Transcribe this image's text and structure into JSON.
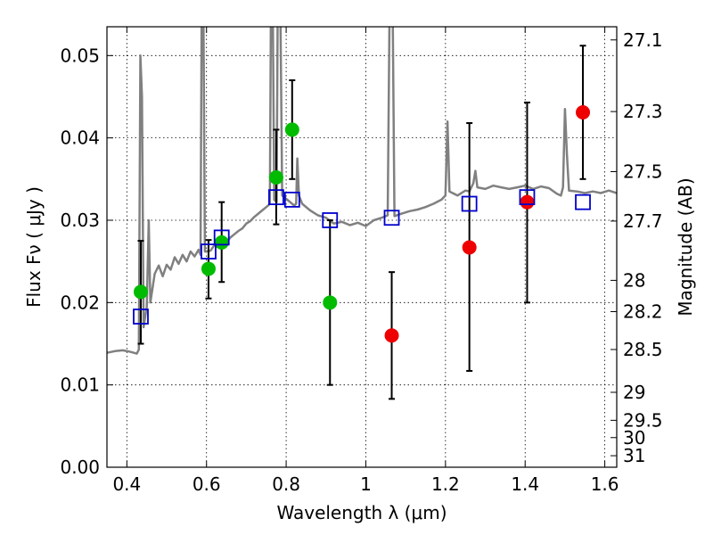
{
  "chart_data": {
    "type": "scatter",
    "xlabel": "Wavelength  λ (μm)",
    "ylabel": "Flux  Fν  ( μJy )",
    "y2label": "Magnitude (AB)",
    "xlim": [
      0.35,
      1.63
    ],
    "ylim": [
      0.0,
      0.0535
    ],
    "xticks": [
      "0.4",
      "0.6",
      "0.8",
      "1",
      "1.2",
      "1.4",
      "1.6"
    ],
    "xtick_values": [
      0.4,
      0.6,
      0.8,
      1.0,
      1.2,
      1.4,
      1.6
    ],
    "yticks": [
      "0.00",
      "0.01",
      "0.02",
      "0.03",
      "0.04",
      "0.05"
    ],
    "ytick_values": [
      0.0,
      0.01,
      0.02,
      0.03,
      0.04,
      0.05
    ],
    "y2ticks": [
      {
        "label": "27.1",
        "flux": 0.0519
      },
      {
        "label": "27.3",
        "flux": 0.0432
      },
      {
        "label": "27.5",
        "flux": 0.0359
      },
      {
        "label": "27.7",
        "flux": 0.0299
      },
      {
        "label": "28",
        "flux": 0.0227
      },
      {
        "label": "28.2",
        "flux": 0.0189
      },
      {
        "label": "28.5",
        "flux": 0.0143
      },
      {
        "label": "29",
        "flux": 0.0091
      },
      {
        "label": "29.5",
        "flux": 0.0057
      },
      {
        "label": "30",
        "flux": 0.0036
      },
      {
        "label": "31",
        "flux": 0.0014
      }
    ],
    "grid": true,
    "colors": {
      "spectrum": "#808080",
      "green_points": "#00bb00",
      "red_points": "#ee0000",
      "model_squares": "#0000cc",
      "errorbar": "#000000"
    },
    "spectrum": [
      [
        0.35,
        0.0139
      ],
      [
        0.37,
        0.0141
      ],
      [
        0.39,
        0.0142
      ],
      [
        0.41,
        0.014
      ],
      [
        0.425,
        0.0138
      ],
      [
        0.43,
        0.0143
      ],
      [
        0.434,
        0.05
      ],
      [
        0.438,
        0.045
      ],
      [
        0.442,
        0.017
      ],
      [
        0.45,
        0.0195
      ],
      [
        0.455,
        0.03
      ],
      [
        0.459,
        0.02
      ],
      [
        0.47,
        0.0235
      ],
      [
        0.48,
        0.0245
      ],
      [
        0.49,
        0.0232
      ],
      [
        0.5,
        0.0246
      ],
      [
        0.51,
        0.024
      ],
      [
        0.52,
        0.0255
      ],
      [
        0.53,
        0.0247
      ],
      [
        0.54,
        0.0258
      ],
      [
        0.55,
        0.025
      ],
      [
        0.56,
        0.0262
      ],
      [
        0.57,
        0.0256
      ],
      [
        0.58,
        0.0264
      ],
      [
        0.585,
        0.0258
      ],
      [
        0.588,
        0.058
      ],
      [
        0.592,
        0.058
      ],
      [
        0.596,
        0.0262
      ],
      [
        0.61,
        0.0263
      ],
      [
        0.62,
        0.027
      ],
      [
        0.63,
        0.0268
      ],
      [
        0.64,
        0.0274
      ],
      [
        0.65,
        0.0273
      ],
      [
        0.66,
        0.0279
      ],
      [
        0.67,
        0.0283
      ],
      [
        0.68,
        0.0287
      ],
      [
        0.69,
        0.029
      ],
      [
        0.7,
        0.0296
      ],
      [
        0.71,
        0.0299
      ],
      [
        0.72,
        0.0304
      ],
      [
        0.73,
        0.0308
      ],
      [
        0.74,
        0.0312
      ],
      [
        0.75,
        0.0316
      ],
      [
        0.755,
        0.0318
      ],
      [
        0.759,
        0.032
      ],
      [
        0.762,
        0.058
      ],
      [
        0.766,
        0.058
      ],
      [
        0.77,
        0.0325
      ],
      [
        0.776,
        0.0322
      ],
      [
        0.779,
        0.058
      ],
      [
        0.785,
        0.058
      ],
      [
        0.79,
        0.033
      ],
      [
        0.8,
        0.0326
      ],
      [
        0.81,
        0.0322
      ],
      [
        0.82,
        0.0318
      ],
      [
        0.825,
        0.032
      ],
      [
        0.828,
        0.0375
      ],
      [
        0.832,
        0.033
      ],
      [
        0.84,
        0.032
      ],
      [
        0.86,
        0.0312
      ],
      [
        0.88,
        0.0306
      ],
      [
        0.9,
        0.0303
      ],
      [
        0.92,
        0.0296
      ],
      [
        0.94,
        0.0298
      ],
      [
        0.96,
        0.0294
      ],
      [
        0.98,
        0.0297
      ],
      [
        1.0,
        0.0293
      ],
      [
        1.02,
        0.03
      ],
      [
        1.04,
        0.0303
      ],
      [
        1.055,
        0.0306
      ],
      [
        1.06,
        0.058
      ],
      [
        1.067,
        0.058
      ],
      [
        1.072,
        0.0305
      ],
      [
        1.09,
        0.0308
      ],
      [
        1.11,
        0.0311
      ],
      [
        1.13,
        0.0313
      ],
      [
        1.15,
        0.0316
      ],
      [
        1.17,
        0.032
      ],
      [
        1.19,
        0.0325
      ],
      [
        1.2,
        0.033
      ],
      [
        1.205,
        0.042
      ],
      [
        1.21,
        0.0335
      ],
      [
        1.23,
        0.033
      ],
      [
        1.25,
        0.0336
      ],
      [
        1.26,
        0.0335
      ],
      [
        1.27,
        0.0345
      ],
      [
        1.275,
        0.036
      ],
      [
        1.28,
        0.034
      ],
      [
        1.3,
        0.0338
      ],
      [
        1.32,
        0.0342
      ],
      [
        1.34,
        0.034
      ],
      [
        1.36,
        0.0338
      ],
      [
        1.38,
        0.034
      ],
      [
        1.4,
        0.0342
      ],
      [
        1.42,
        0.0338
      ],
      [
        1.44,
        0.0341
      ],
      [
        1.46,
        0.0339
      ],
      [
        1.48,
        0.0332
      ],
      [
        1.49,
        0.033
      ],
      [
        1.495,
        0.034
      ],
      [
        1.5,
        0.0435
      ],
      [
        1.505,
        0.038
      ],
      [
        1.51,
        0.0336
      ],
      [
        1.53,
        0.0335
      ],
      [
        1.55,
        0.0333
      ],
      [
        1.57,
        0.0335
      ],
      [
        1.59,
        0.0333
      ],
      [
        1.61,
        0.0336
      ],
      [
        1.63,
        0.0333
      ]
    ],
    "errorbars": [
      {
        "x": 0.435,
        "ylo": 0.015,
        "yhi": 0.0275
      },
      {
        "x": 0.605,
        "ylo": 0.0205,
        "yhi": 0.0276
      },
      {
        "x": 0.638,
        "ylo": 0.0225,
        "yhi": 0.0322
      },
      {
        "x": 0.775,
        "ylo": 0.0295,
        "yhi": 0.041
      },
      {
        "x": 0.815,
        "ylo": 0.035,
        "yhi": 0.047
      },
      {
        "x": 0.91,
        "ylo": 0.01,
        "yhi": 0.03
      },
      {
        "x": 1.065,
        "ylo": 0.0083,
        "yhi": 0.0237
      },
      {
        "x": 1.26,
        "ylo": 0.0117,
        "yhi": 0.0418
      },
      {
        "x": 1.405,
        "ylo": 0.02,
        "yhi": 0.0443
      },
      {
        "x": 1.545,
        "ylo": 0.035,
        "yhi": 0.0512
      }
    ],
    "green_points": [
      {
        "x": 0.435,
        "y": 0.0213
      },
      {
        "x": 0.605,
        "y": 0.0241
      },
      {
        "x": 0.638,
        "y": 0.0273
      },
      {
        "x": 0.775,
        "y": 0.0352
      },
      {
        "x": 0.815,
        "y": 0.041
      },
      {
        "x": 0.91,
        "y": 0.02
      }
    ],
    "red_points": [
      {
        "x": 1.065,
        "y": 0.016
      },
      {
        "x": 1.26,
        "y": 0.0267
      },
      {
        "x": 1.405,
        "y": 0.0322
      },
      {
        "x": 1.545,
        "y": 0.0431
      }
    ],
    "model_squares": [
      {
        "x": 0.435,
        "y": 0.0183
      },
      {
        "x": 0.605,
        "y": 0.0262
      },
      {
        "x": 0.638,
        "y": 0.0279
      },
      {
        "x": 0.775,
        "y": 0.0328
      },
      {
        "x": 0.815,
        "y": 0.0325
      },
      {
        "x": 0.91,
        "y": 0.03
      },
      {
        "x": 1.065,
        "y": 0.0303
      },
      {
        "x": 1.26,
        "y": 0.032
      },
      {
        "x": 1.405,
        "y": 0.0328
      },
      {
        "x": 1.545,
        "y": 0.0322
      }
    ]
  }
}
